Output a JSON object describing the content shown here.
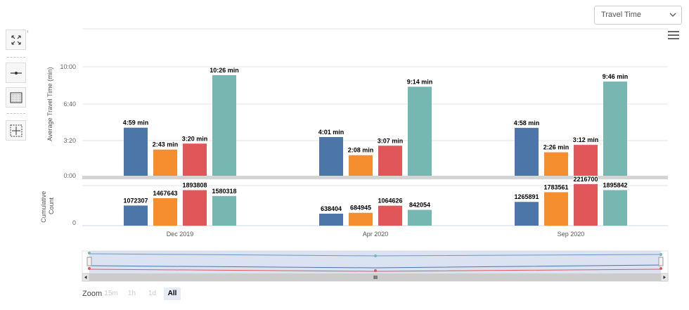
{
  "metric_select": {
    "value": "Travel Time"
  },
  "icons": {
    "fullscreen": "expand-arrows-icon",
    "line": "line-style-icon",
    "grid": "table-grid-icon",
    "crosshair": "crosshair-frame-icon",
    "menu": "hamburger-menu-icon",
    "collapse": "collapse-caret-icon",
    "chevron": "chevron-down-icon"
  },
  "zoom": {
    "label": "Zoom",
    "buttons": [
      "15m",
      "1h",
      "1d",
      "All"
    ],
    "active": "All"
  },
  "navigator": {
    "handle_label": "III"
  },
  "chart_data": [
    {
      "type": "bar",
      "ylabel": "Average Travel Time (min)",
      "y_ticks": [
        "0:00",
        "3:20",
        "6:40",
        "10:00"
      ],
      "ylim_seconds": [
        0,
        700
      ],
      "categories": [
        "Dec 2019",
        "Apr 2020",
        "Sep 2020"
      ],
      "colors": [
        "#4d76a8",
        "#f48e2f",
        "#e15759",
        "#76b7b2"
      ],
      "series": [
        {
          "values": [
            299,
            241,
            298
          ],
          "labels": [
            "4:59 min",
            "4:01 min",
            "4:58 min"
          ]
        },
        {
          "values": [
            163,
            128,
            146
          ],
          "labels": [
            "2:43 min",
            "2:08 min",
            "2:26 min"
          ]
        },
        {
          "values": [
            200,
            187,
            192
          ],
          "labels": [
            "3:20 min",
            "3:07 min",
            "3:12 min"
          ]
        },
        {
          "values": [
            626,
            554,
            586
          ],
          "labels": [
            "10:26 min",
            "9:14 min",
            "9:46 min"
          ]
        }
      ]
    },
    {
      "type": "bar",
      "ylabel": "Cumulative Count",
      "y_ticks": [
        "0"
      ],
      "ylim": [
        0,
        2400000
      ],
      "categories": [
        "Dec 2019",
        "Apr 2020",
        "Sep 2020"
      ],
      "colors": [
        "#4d76a8",
        "#f48e2f",
        "#e15759",
        "#76b7b2"
      ],
      "series": [
        {
          "values": [
            1072307,
            638404,
            1265891
          ],
          "labels": [
            "1072307",
            "638404",
            "1265891"
          ]
        },
        {
          "values": [
            1467643,
            684945,
            1783561
          ],
          "labels": [
            "1467643",
            "684945",
            "1783561"
          ]
        },
        {
          "values": [
            1893808,
            1064626,
            2216700
          ],
          "labels": [
            "1893808",
            "1064626",
            "2216700"
          ]
        },
        {
          "values": [
            1580318,
            842054,
            1895842
          ],
          "labels": [
            "1580318",
            "842054",
            "1895842"
          ]
        }
      ]
    }
  ]
}
